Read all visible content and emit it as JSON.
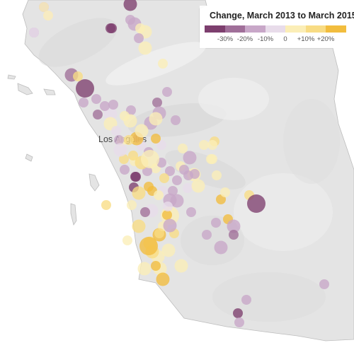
{
  "map": {
    "city_label": "Los Angeles"
  },
  "legend": {
    "title": "Change, March 2013 to March 2015",
    "ticks": [
      "-30%",
      "-20%",
      "-10%",
      "0",
      "+10%",
      "+20%"
    ],
    "colors": [
      "#7d3f6e",
      "#a06f99",
      "#c8a7c8",
      "#e8dcea",
      "#fbeeb7",
      "#f8dc84",
      "#f2bd3e"
    ]
  },
  "colors": {
    "land": "#e4e4e4",
    "water": "#ffffff",
    "coast_stroke": "#bdbdbd"
  },
  "symbols": [
    {
      "change": -6,
      "size": 2
    },
    {
      "change": -8,
      "size": 2
    },
    {
      "change": -4,
      "size": 2
    },
    {
      "change": -30,
      "size": 2
    },
    {
      "change": -12,
      "size": 3
    },
    {
      "change": 8,
      "size": 3
    },
    {
      "change": -14,
      "size": 2
    },
    {
      "change": -26,
      "size": 3
    },
    {
      "change": 12,
      "size": 2
    },
    {
      "change": -30,
      "size": 4
    },
    {
      "change": -20,
      "size": 3
    },
    {
      "change": -6,
      "size": 2
    },
    {
      "change": -14,
      "size": 2
    },
    {
      "change": -4,
      "size": 3
    },
    {
      "change": -18,
      "size": 2
    },
    {
      "change": 6,
      "size": 3
    },
    {
      "change": -10,
      "size": 2
    },
    {
      "change": -16,
      "size": 2
    },
    {
      "change": -8,
      "size": 3
    },
    {
      "change": 4,
      "size": 2
    },
    {
      "change": -12,
      "size": 2
    },
    {
      "change": -4,
      "size": 2
    },
    {
      "change": 18,
      "size": 2
    },
    {
      "change": 10,
      "size": 2
    },
    {
      "change": -6,
      "size": 2
    },
    {
      "change": 14,
      "size": 2
    },
    {
      "change": -8,
      "size": 2
    },
    {
      "change": -6,
      "size": 2
    },
    {
      "change": 20,
      "size": 2
    },
    {
      "change": -26,
      "size": 2
    },
    {
      "change": -28,
      "size": 2
    },
    {
      "change": 22,
      "size": 2
    },
    {
      "change": 6,
      "size": 4
    },
    {
      "change": -4,
      "size": 2
    },
    {
      "change": 24,
      "size": 2
    },
    {
      "change": 10,
      "size": 3
    },
    {
      "change": 8,
      "size": 2
    },
    {
      "change": 4,
      "size": 2
    },
    {
      "change": -6,
      "size": 2
    },
    {
      "change": -8,
      "size": 3
    },
    {
      "change": -10,
      "size": 2
    },
    {
      "change": 6,
      "size": 3
    },
    {
      "change": 8,
      "size": 2
    },
    {
      "change": -12,
      "size": 2
    },
    {
      "change": 18,
      "size": 2
    },
    {
      "change": -8,
      "size": 2
    },
    {
      "change": -14,
      "size": 2
    },
    {
      "change": 14,
      "size": 2
    },
    {
      "change": 20,
      "size": 3
    },
    {
      "change": 26,
      "size": 2
    },
    {
      "change": 14,
      "size": 3
    },
    {
      "change": 20,
      "size": 2
    },
    {
      "change": 24,
      "size": 2
    },
    {
      "change": 10,
      "size": 2
    },
    {
      "change": -8,
      "size": 2
    },
    {
      "change": 16,
      "size": 3
    },
    {
      "change": 10,
      "size": 3
    },
    {
      "change": 8,
      "size": 3
    },
    {
      "change": 18,
      "size": 3
    },
    {
      "change": 22,
      "size": 3
    },
    {
      "change": 12,
      "size": 2
    },
    {
      "change": 26,
      "size": 4
    },
    {
      "change": 14,
      "size": 2
    },
    {
      "change": 16,
      "size": 3
    },
    {
      "change": 10,
      "size": 3
    },
    {
      "change": 6,
      "size": 3
    },
    {
      "change": 22,
      "size": 3
    },
    {
      "change": 12,
      "size": 3
    },
    {
      "change": 18,
      "size": 2
    },
    {
      "change": 12,
      "size": 2
    },
    {
      "change": 8,
      "size": 2
    },
    {
      "change": 20,
      "size": 2
    },
    {
      "change": 10,
      "size": 2
    },
    {
      "change": 4,
      "size": 2
    },
    {
      "change": -26,
      "size": 2
    },
    {
      "change": -30,
      "size": 2
    },
    {
      "change": -12,
      "size": 2
    },
    {
      "change": -6,
      "size": 2
    },
    {
      "change": -10,
      "size": 2
    },
    {
      "change": -8,
      "size": 2
    },
    {
      "change": 12,
      "size": 2
    },
    {
      "change": 14,
      "size": 2
    },
    {
      "change": 4,
      "size": 3
    },
    {
      "change": -8,
      "size": 2
    },
    {
      "change": -12,
      "size": 2
    },
    {
      "change": -14,
      "size": 3
    },
    {
      "change": 8,
      "size": 2
    },
    {
      "change": 20,
      "size": 2
    },
    {
      "change": -10,
      "size": 2
    },
    {
      "change": -6,
      "size": 2
    },
    {
      "change": 24,
      "size": 2
    },
    {
      "change": -14,
      "size": 3
    },
    {
      "change": -28,
      "size": 4
    },
    {
      "change": -8,
      "size": 3
    },
    {
      "change": -12,
      "size": 2
    },
    {
      "change": -6,
      "size": 3
    },
    {
      "change": 12,
      "size": 2
    },
    {
      "change": -16,
      "size": 2
    },
    {
      "change": 6,
      "size": 2
    },
    {
      "change": 16,
      "size": 2
    },
    {
      "change": -12,
      "size": 2
    },
    {
      "change": -28,
      "size": 2
    },
    {
      "change": -6,
      "size": 2
    },
    {
      "change": -12,
      "size": 2
    },
    {
      "change": -14,
      "size": 3
    },
    {
      "change": -6,
      "size": 2
    },
    {
      "change": -18,
      "size": 2
    },
    {
      "change": -4,
      "size": 2
    },
    {
      "change": -10,
      "size": 3
    },
    {
      "change": 24,
      "size": 2
    },
    {
      "change": 26,
      "size": 3
    },
    {
      "change": 20,
      "size": 3
    },
    {
      "change": 16,
      "size": 2
    },
    {
      "change": 10,
      "size": 3
    },
    {
      "change": 6,
      "size": 4
    },
    {
      "change": 8,
      "size": 3
    },
    {
      "change": 12,
      "size": 3
    },
    {
      "change": 4,
      "size": 3
    },
    {
      "change": 18,
      "size": 2
    },
    {
      "change": 22,
      "size": 2
    },
    {
      "change": 6,
      "size": 2
    },
    {
      "change": 8,
      "size": 2
    },
    {
      "change": -4,
      "size": 2
    },
    {
      "change": 10,
      "size": 2
    }
  ]
}
